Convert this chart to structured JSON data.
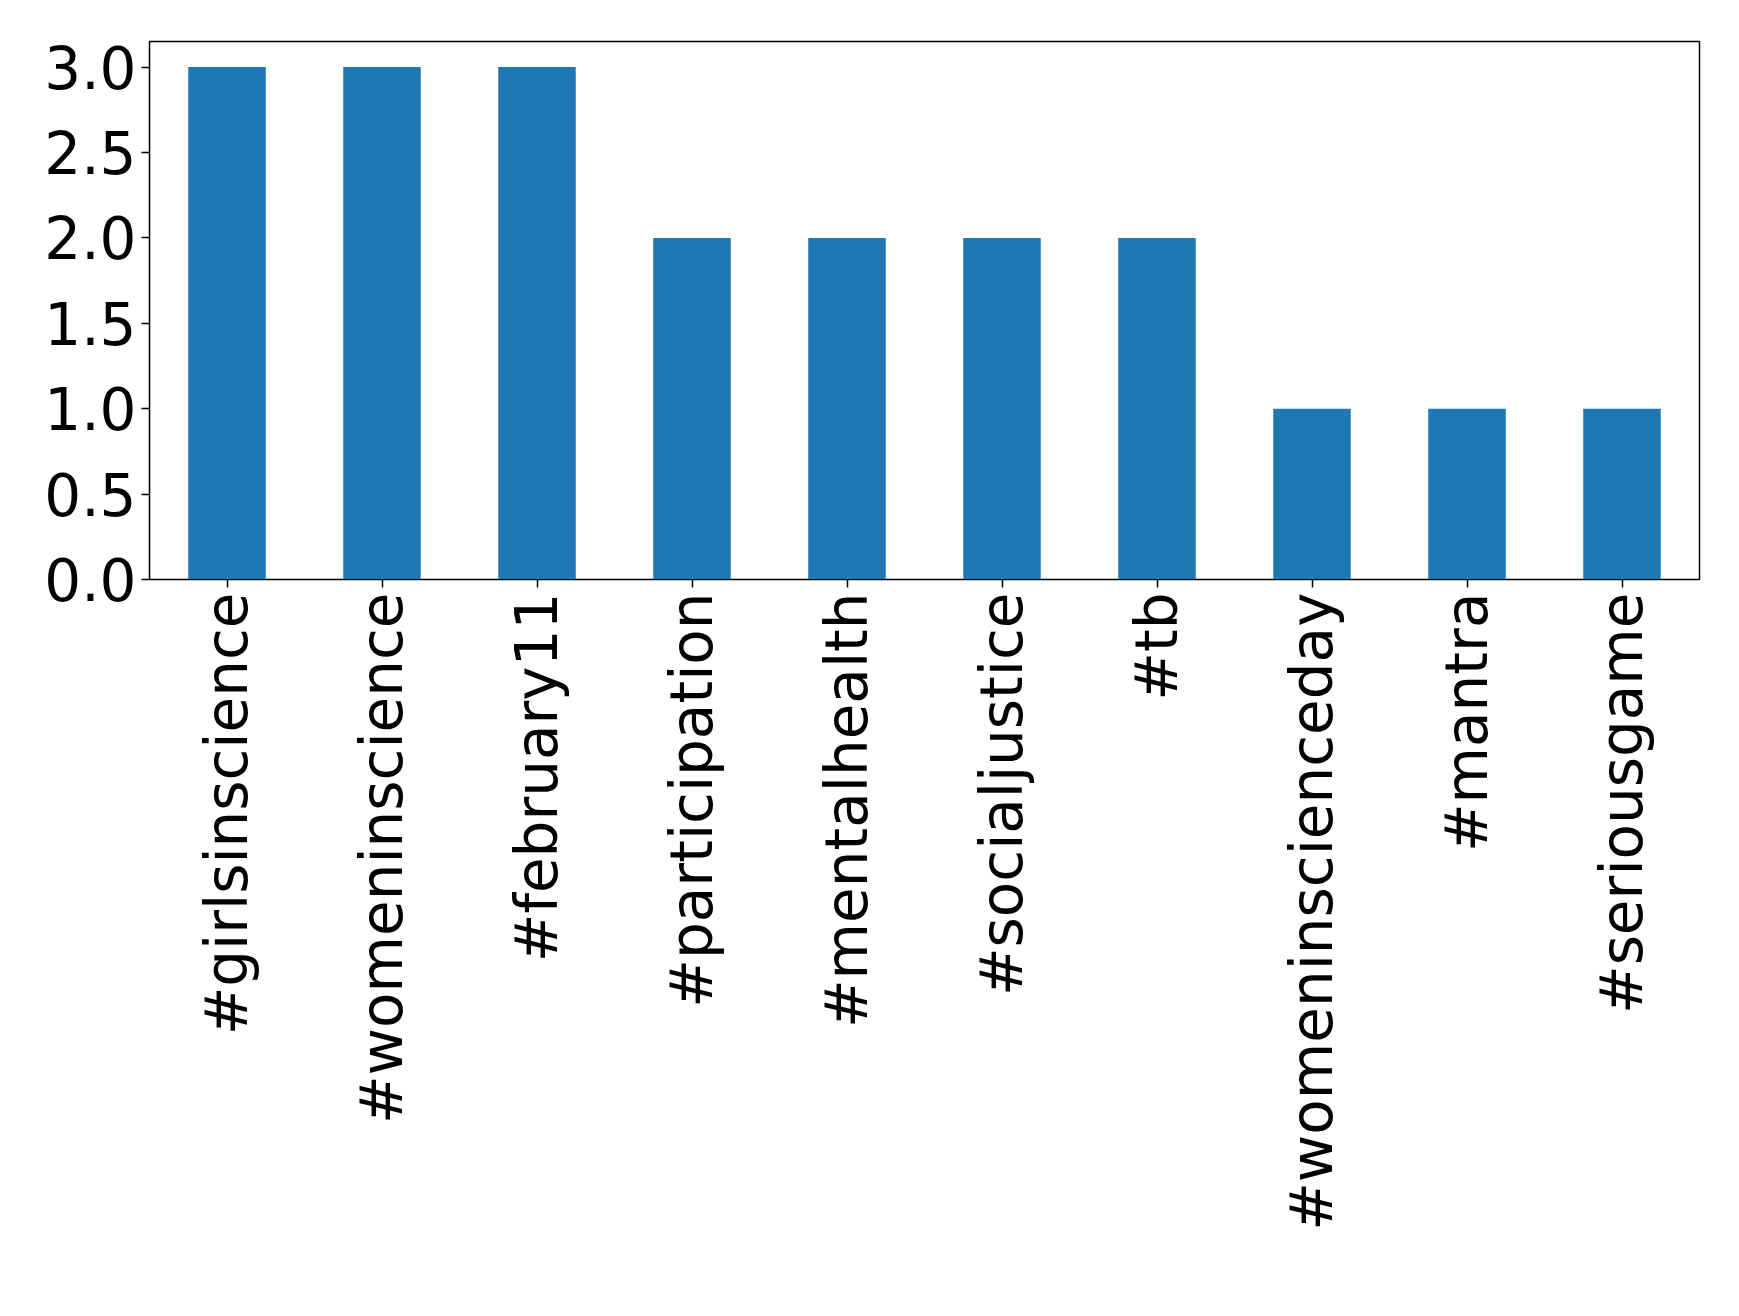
{
  "chart_data": {
    "type": "bar",
    "categories": [
      "#girlsinscience",
      "#womeninscience",
      "#february11",
      "#participation",
      "#mentalhealth",
      "#socialjustice",
      "#tb",
      "#womeninscienceday",
      "#mantra",
      "#seriousgame"
    ],
    "values": [
      3,
      3,
      3,
      2,
      2,
      2,
      2,
      1,
      1,
      1
    ],
    "color": "#1f77b4",
    "ylim": [
      0,
      3.15
    ],
    "yticks": [
      {
        "value": 0,
        "label": "0.0"
      },
      {
        "value": 0.5,
        "label": "0.5"
      },
      {
        "value": 1,
        "label": "1.0"
      },
      {
        "value": 1.5,
        "label": "1.5"
      },
      {
        "value": 2,
        "label": "2.0"
      },
      {
        "value": 2.5,
        "label": "2.5"
      },
      {
        "value": 3,
        "label": "3.0"
      }
    ],
    "grid": false
  }
}
